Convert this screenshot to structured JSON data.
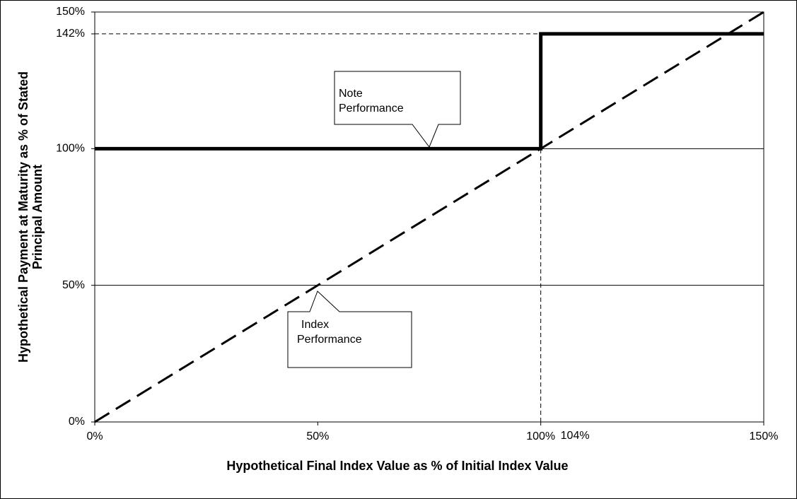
{
  "chart_data": {
    "type": "line",
    "x_label": "Hypothetical Final Index Value as % of Initial Index Value",
    "y_label": [
      "Hypothetical Payment at Maturity as % of Stated",
      "Principal Amount"
    ],
    "series": [
      {
        "x": [
          0,
          100,
          100,
          150
        ],
        "values": [
          100,
          100,
          142,
          142
        ],
        "color": "#000000",
        "style": "solid"
      },
      {
        "x": [
          0,
          150
        ],
        "values": [
          0,
          150
        ],
        "color": "#000000",
        "style": "dashed"
      }
    ],
    "xlim": [
      0,
      150
    ],
    "xticks": [
      {
        "value": 0,
        "label": "0%"
      },
      {
        "value": 50,
        "label": "50%"
      },
      {
        "value": 100,
        "label": "100%"
      },
      {
        "value": 150,
        "label": "150%"
      }
    ],
    "ylim": [
      0,
      150
    ],
    "yticks": [
      {
        "value": 0,
        "label": "0%"
      },
      {
        "value": 50,
        "label": "50%"
      },
      {
        "value": 100,
        "label": "100%"
      },
      {
        "value": 142,
        "label": "142%"
      },
      {
        "value": 150,
        "label": "150%"
      }
    ],
    "grid": true,
    "annotations": {
      "note": [
        "Note",
        "Performance"
      ],
      "index": [
        "Index",
        "Performance"
      ],
      "threshold": "104%"
    }
  }
}
